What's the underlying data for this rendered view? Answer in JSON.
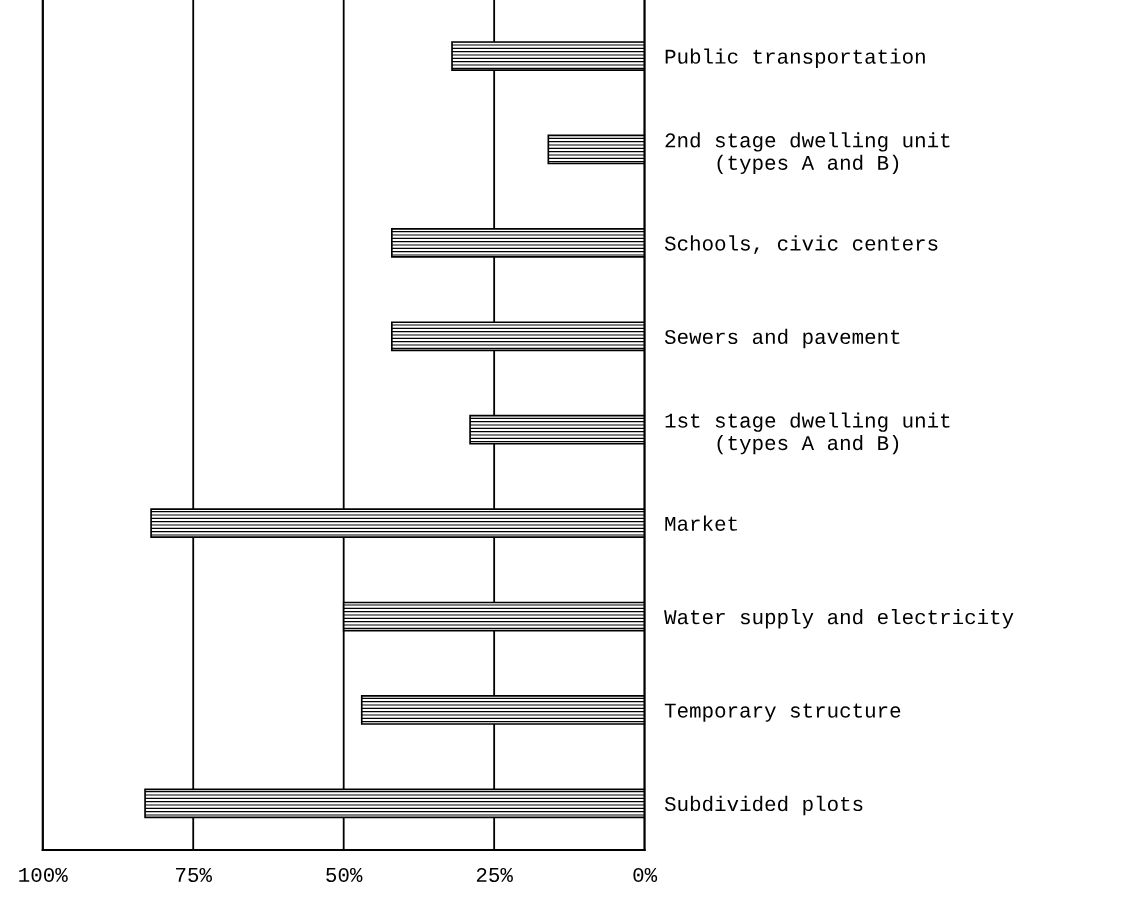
{
  "chart_data": {
    "type": "bar",
    "orientation": "horizontal",
    "categories": [
      "Public transportation",
      "2nd stage dwelling unit\n    (types A and B)",
      "Schools, civic centers",
      "Sewers and pavement",
      "1st stage dwelling unit\n    (types A and B)",
      "Market",
      "Water supply and electricity",
      "Temporary structure",
      "Subdivided plots"
    ],
    "values": [
      32,
      16,
      42,
      42,
      29,
      82,
      50,
      47,
      83
    ],
    "color": "#000000",
    "xlim": [
      100,
      0
    ],
    "xticks": [
      {
        "value": 100,
        "label": "100%"
      },
      {
        "value": 75,
        "label": "75%"
      },
      {
        "value": 50,
        "label": "50%"
      },
      {
        "value": 25,
        "label": "25%"
      },
      {
        "value": 0,
        "label": "0%"
      }
    ],
    "grid": "x"
  }
}
